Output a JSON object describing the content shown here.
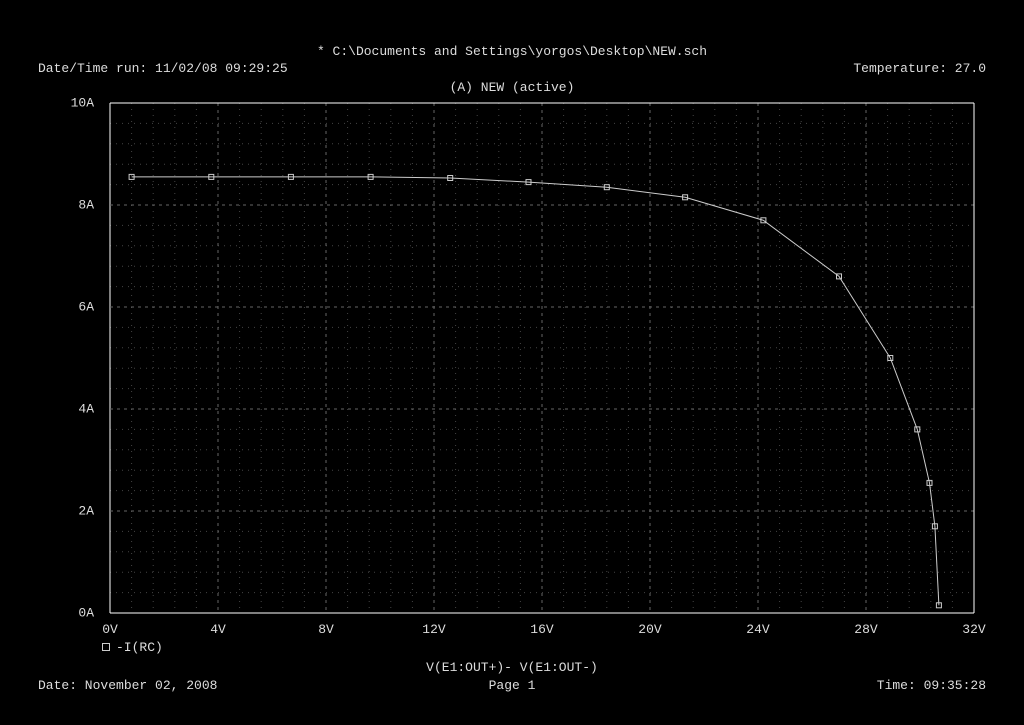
{
  "header": {
    "title": "* C:\\Documents and Settings\\yorgos\\Desktop\\NEW.sch",
    "datetime_run": "Date/Time run: 11/02/08 09:29:25",
    "temperature": "Temperature: 27.0",
    "subtitle": "(A) NEW (active)"
  },
  "footer": {
    "date": "Date: November 02, 2008",
    "page": "Page 1",
    "time": "Time: 09:35:28"
  },
  "chart": {
    "type": "line",
    "background_color": "#000000",
    "text_color": "#dddddd",
    "border_color": "#ffffff",
    "major_grid_color": "#666666",
    "minor_grid_color": "#444444",
    "line_color": "#cccccc",
    "marker_color": "#cccccc",
    "marker_style": "square",
    "marker_size": 5,
    "line_width": 1,
    "xaxis": {
      "min": 0,
      "max": 32,
      "major_step": 4,
      "minor_step": 0.8,
      "tick_labels": [
        "0V",
        "4V",
        "8V",
        "12V",
        "16V",
        "20V",
        "24V",
        "28V",
        "32V"
      ],
      "label": "V(E1:OUT+)- V(E1:OUT-)"
    },
    "yaxis": {
      "min": 0,
      "max": 10,
      "major_step": 2,
      "minor_step": 0.4,
      "tick_labels": [
        "0A",
        "2A",
        "4A",
        "6A",
        "8A",
        "10A"
      ]
    },
    "series": [
      {
        "name": "-I(RC)",
        "points": [
          {
            "x": 0.8,
            "y": 8.55
          },
          {
            "x": 3.75,
            "y": 8.55
          },
          {
            "x": 6.7,
            "y": 8.55
          },
          {
            "x": 9.65,
            "y": 8.55
          },
          {
            "x": 12.6,
            "y": 8.53
          },
          {
            "x": 15.5,
            "y": 8.45
          },
          {
            "x": 18.4,
            "y": 8.35
          },
          {
            "x": 21.3,
            "y": 8.15
          },
          {
            "x": 24.2,
            "y": 7.7
          },
          {
            "x": 27.0,
            "y": 6.6
          },
          {
            "x": 28.9,
            "y": 5.0
          },
          {
            "x": 29.9,
            "y": 3.6
          },
          {
            "x": 30.35,
            "y": 2.55
          },
          {
            "x": 30.55,
            "y": 1.7
          },
          {
            "x": 30.7,
            "y": 0.15
          }
        ]
      }
    ],
    "legend": {
      "label": "-I(RC)"
    }
  }
}
